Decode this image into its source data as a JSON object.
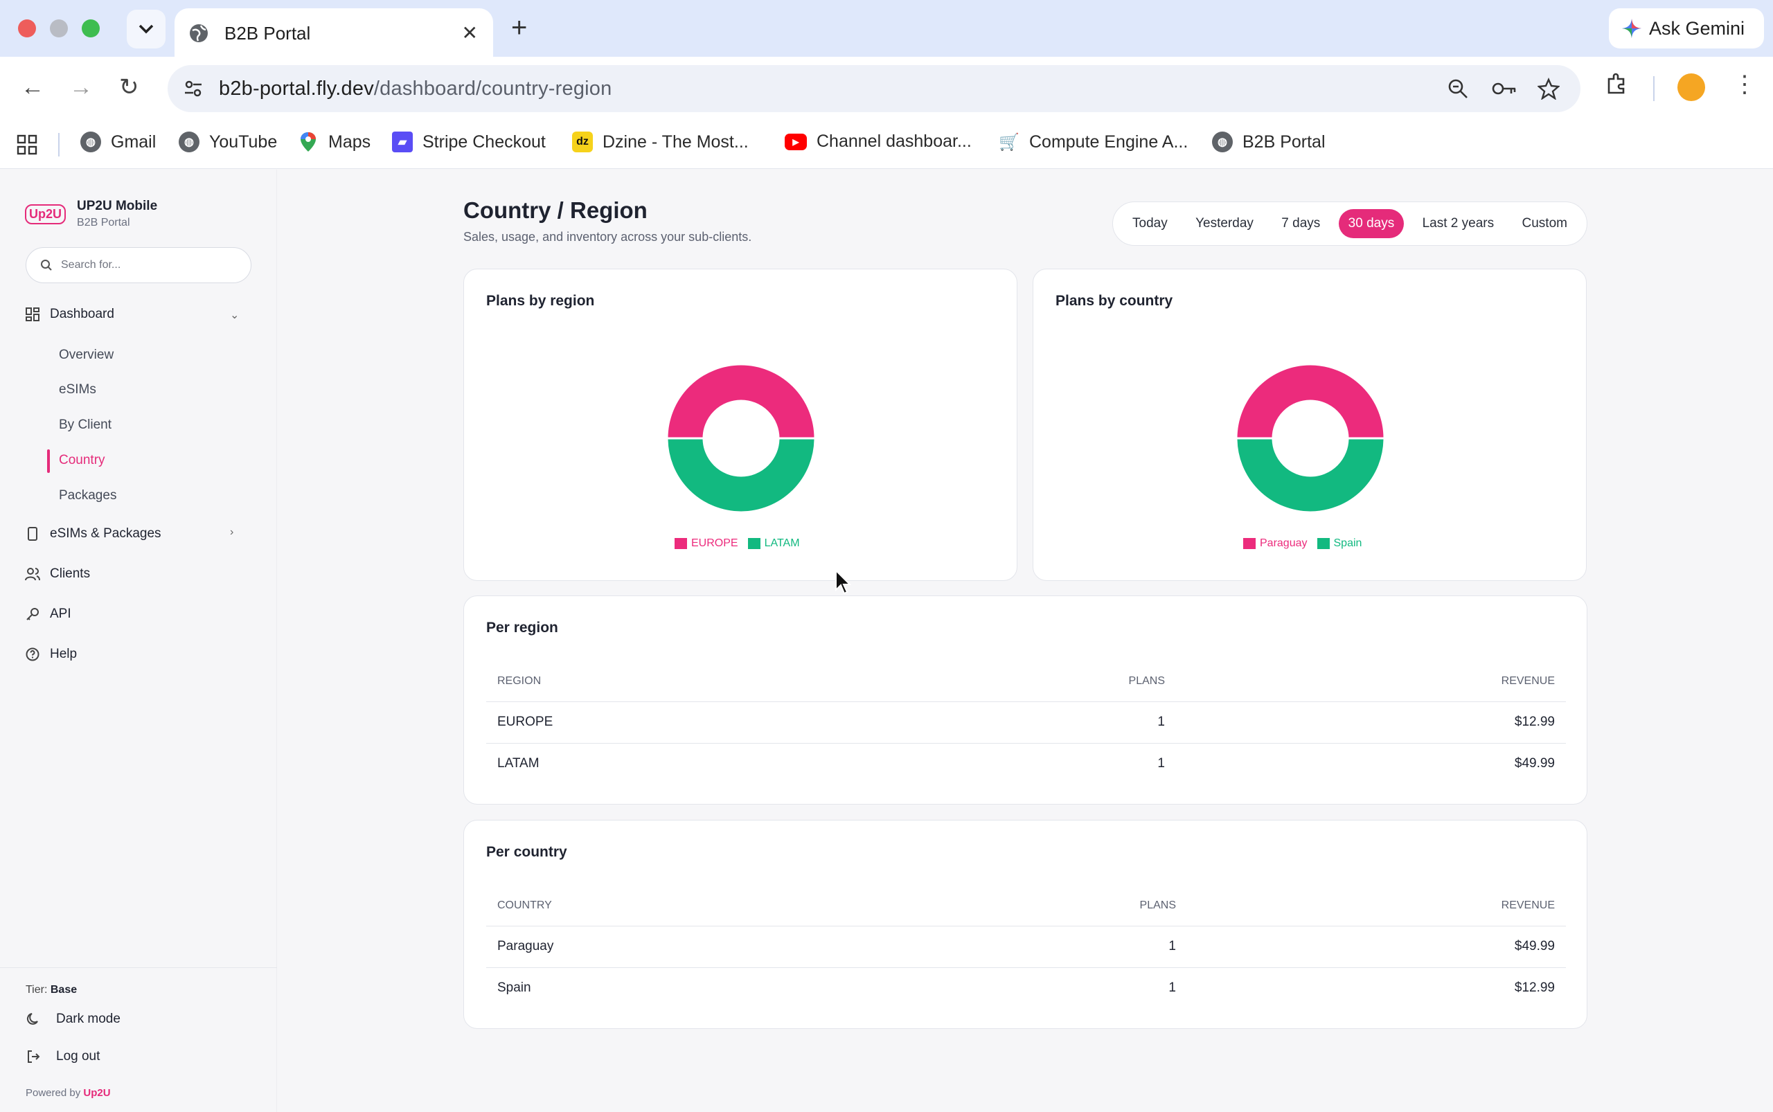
{
  "browser": {
    "tab_title": "B2B Portal",
    "url_host": "b2b-portal.fly.dev",
    "url_path": "/dashboard/country-region",
    "gemini_label": "Ask Gemini",
    "bookmarks": [
      "Gmail",
      "YouTube",
      "Maps",
      "Stripe Checkout",
      "Dzine - The Most...",
      "Channel dashboar...",
      "Compute Engine A...",
      "B2B Portal"
    ],
    "bookmark_dzine_badge": "dz"
  },
  "sidebar": {
    "logo_text": "Up2U",
    "brand_name": "UP2U Mobile",
    "brand_sub": "B2B Portal",
    "search_placeholder": "Search for...",
    "dashboard_label": "Dashboard",
    "dashboard_items": [
      "Overview",
      "eSIMs",
      "By Client",
      "Country",
      "Packages"
    ],
    "active_item": "Country",
    "esims_packages_label": "eSIMs & Packages",
    "clients_label": "Clients",
    "api_label": "API",
    "help_label": "Help",
    "tier_label": "Tier:",
    "tier_value": "Base",
    "dark_mode_label": "Dark mode",
    "logout_label": "Log out",
    "powered_label": "Powered by",
    "powered_brand": "Up2U"
  },
  "header": {
    "title": "Country / Region",
    "subtitle": "Sales, usage, and inventory across your sub-clients.",
    "ranges": [
      "Today",
      "Yesterday",
      "7 days",
      "30 days",
      "Last 2 years",
      "Custom"
    ],
    "active_range": "30 days"
  },
  "colors": {
    "accent": "#e52b7a",
    "series_pink": "#ec2b7c",
    "series_green": "#12b980"
  },
  "chart_data": [
    {
      "type": "pie",
      "title": "Plans by region",
      "categories": [
        "EUROPE",
        "LATAM"
      ],
      "values": [
        1,
        1
      ],
      "legend": "bottom"
    },
    {
      "type": "pie",
      "title": "Plans by country",
      "categories": [
        "Paraguay",
        "Spain"
      ],
      "values": [
        1,
        1
      ],
      "legend": "bottom"
    }
  ],
  "per_region": {
    "title": "Per region",
    "headers": [
      "REGION",
      "PLANS",
      "REVENUE"
    ],
    "rows": [
      [
        "EUROPE",
        "1",
        "$12.99"
      ],
      [
        "LATAM",
        "1",
        "$49.99"
      ]
    ]
  },
  "per_country": {
    "title": "Per country",
    "headers": [
      "COUNTRY",
      "PLANS",
      "REVENUE"
    ],
    "rows": [
      [
        "Paraguay",
        "1",
        "$49.99"
      ],
      [
        "Spain",
        "1",
        "$12.99"
      ]
    ]
  }
}
